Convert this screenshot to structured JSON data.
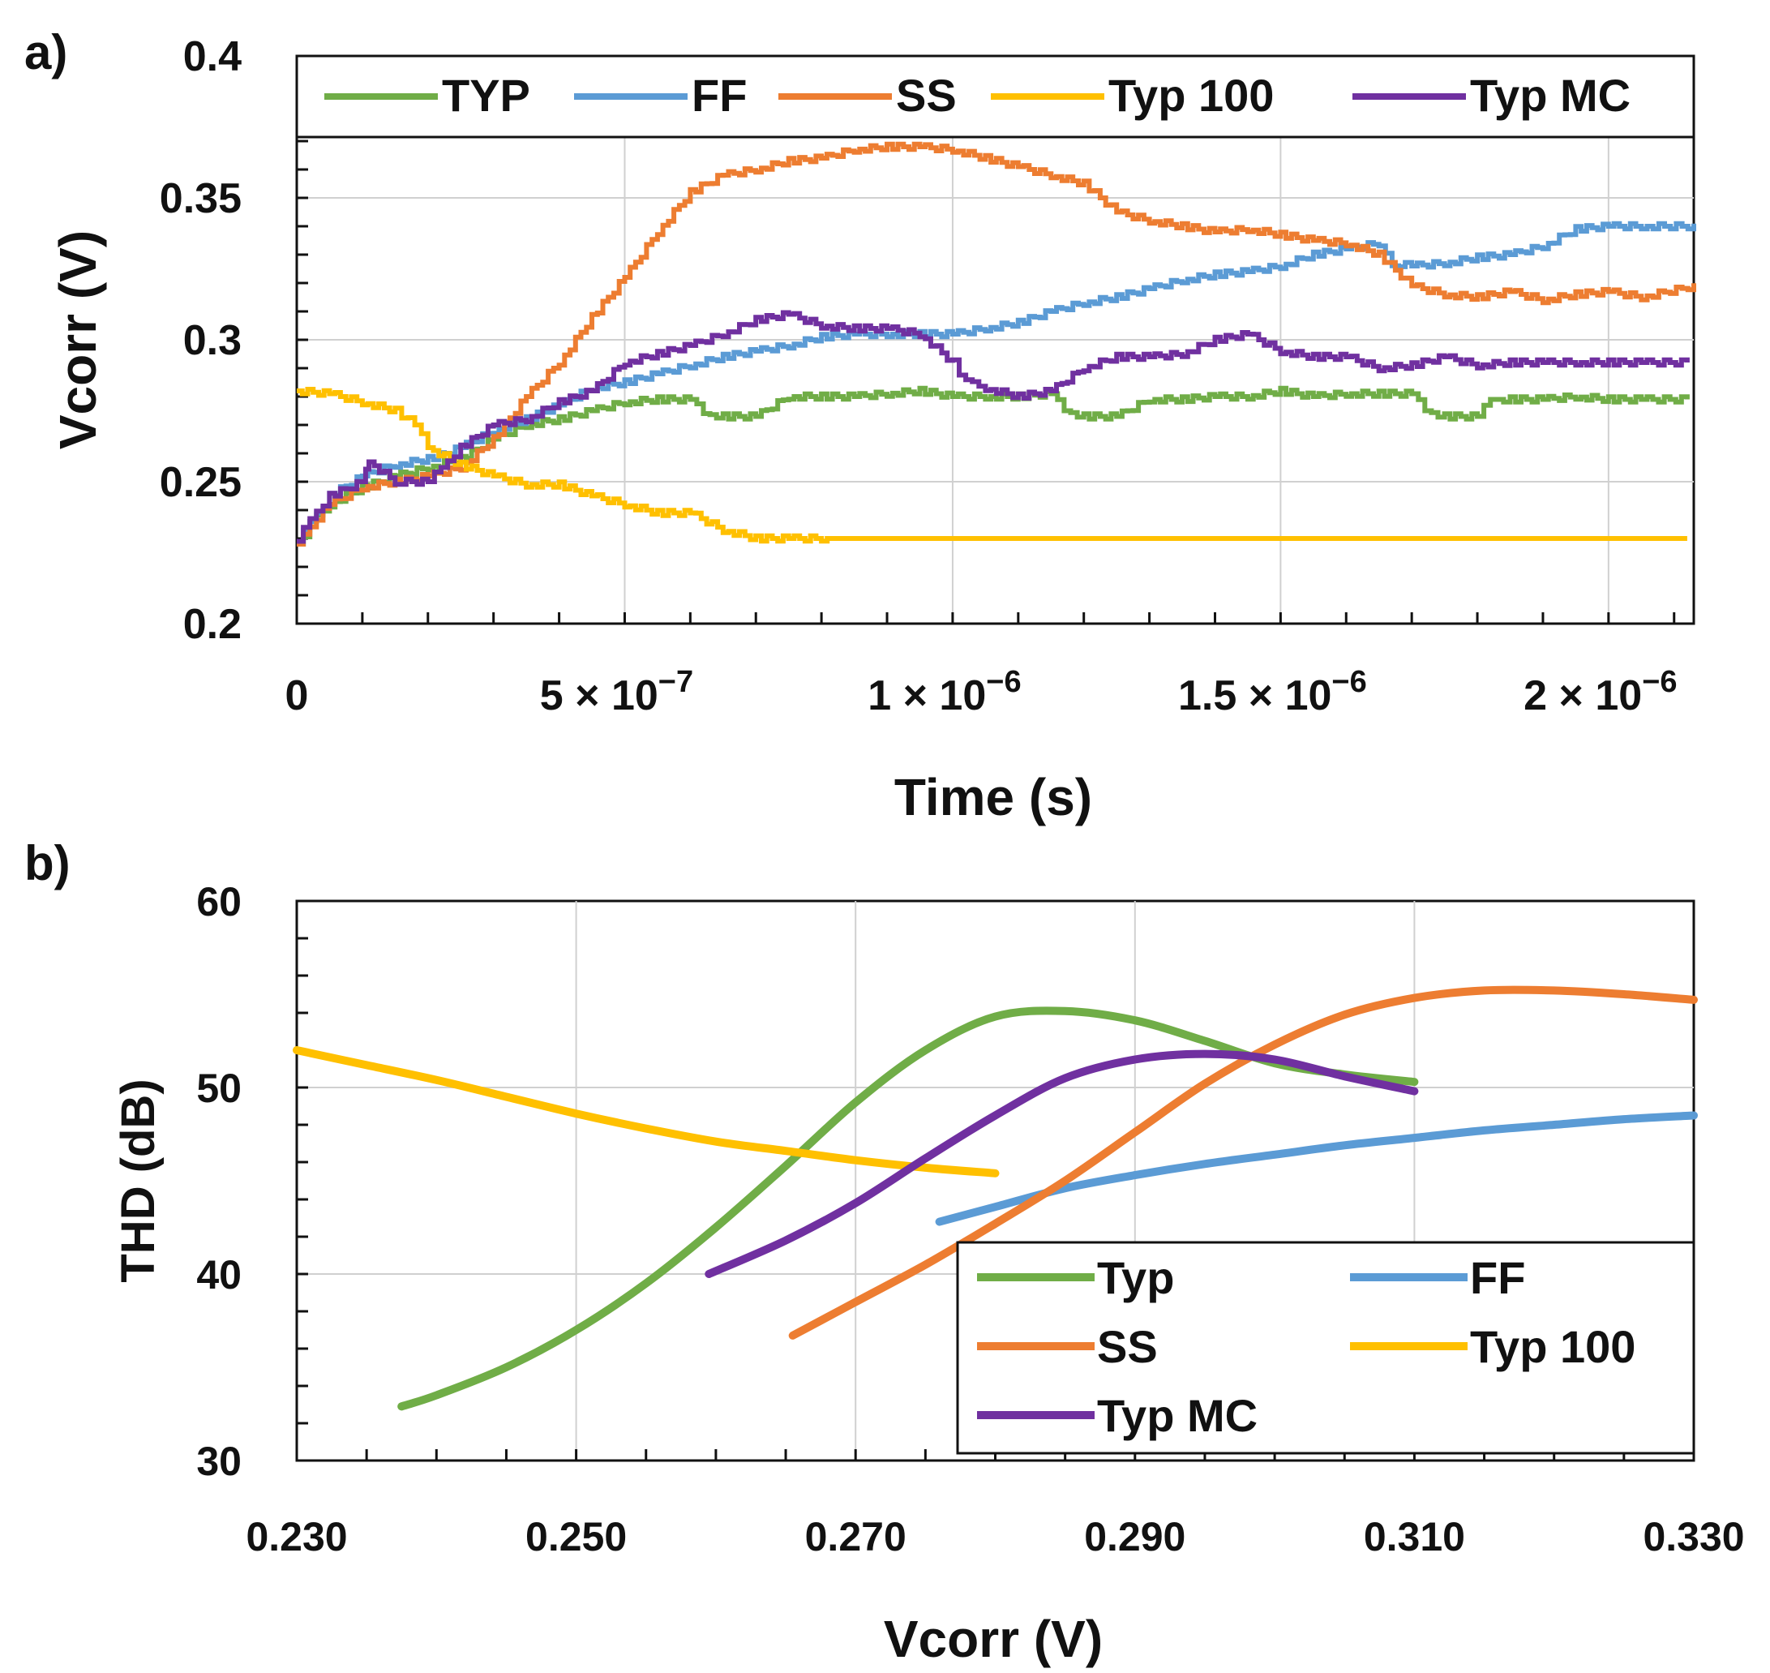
{
  "colors": {
    "typ": "#70AD47",
    "ff": "#5B9BD5",
    "ss": "#ED7D31",
    "typ100": "#FFC000",
    "typmc": "#7030A0"
  },
  "chart_data": [
    {
      "panel_label": "a)",
      "type": "line",
      "title": "",
      "xlabel": "Time (s)",
      "ylabel": "Vcorr (V)",
      "xlim": [
        0,
        2.13e-06
      ],
      "ylim": [
        0.2,
        0.4
      ],
      "grid": true,
      "legend_position": "top",
      "x_ticks": [
        {
          "value": 0,
          "mant": "0",
          "exp": ""
        },
        {
          "value": 5e-07,
          "mant": "5 × 10",
          "exp": "−7"
        },
        {
          "value": 1e-06,
          "mant": "1 × 10",
          "exp": "−6"
        },
        {
          "value": 1.5e-06,
          "mant": "1.5 × 10",
          "exp": "−6"
        },
        {
          "value": 2e-06,
          "mant": "2 × 10",
          "exp": "−6"
        }
      ],
      "y_ticks": [
        {
          "value": 0.2,
          "label": "0.2"
        },
        {
          "value": 0.25,
          "label": "0.25"
        },
        {
          "value": 0.3,
          "label": "0.3"
        },
        {
          "value": 0.35,
          "label": "0.35"
        },
        {
          "value": 0.4,
          "label": "0.4"
        }
      ],
      "series": [
        {
          "key": "typ",
          "name": "TYP",
          "color": "#70AD47",
          "x": [
            0,
            2e-08,
            5e-08,
            1e-07,
            1.5e-07,
            2e-07,
            2.5e-07,
            3e-07,
            3.5e-07,
            4e-07,
            4.5e-07,
            5e-07,
            5.5e-07,
            6e-07,
            6.2e-07,
            6.5e-07,
            7e-07,
            7.5e-07,
            8e-07,
            8.5e-07,
            9e-07,
            9.5e-07,
            1e-06,
            1.05e-06,
            1.1e-06,
            1.15e-06,
            1.17e-06,
            1.2e-06,
            1.25e-06,
            1.3e-06,
            1.35e-06,
            1.4e-06,
            1.45e-06,
            1.5e-06,
            1.55e-06,
            1.6e-06,
            1.65e-06,
            1.7e-06,
            1.72e-06,
            1.75e-06,
            1.8e-06,
            1.82e-06,
            1.85e-06,
            1.9e-06,
            1.95e-06,
            2e-06,
            2.05e-06,
            2.12e-06
          ],
          "y": [
            0.228,
            0.235,
            0.242,
            0.248,
            0.252,
            0.255,
            0.258,
            0.265,
            0.27,
            0.272,
            0.275,
            0.278,
            0.279,
            0.279,
            0.274,
            0.273,
            0.273,
            0.28,
            0.28,
            0.28,
            0.281,
            0.282,
            0.28,
            0.28,
            0.28,
            0.281,
            0.275,
            0.273,
            0.273,
            0.279,
            0.279,
            0.28,
            0.28,
            0.282,
            0.28,
            0.281,
            0.281,
            0.281,
            0.275,
            0.273,
            0.273,
            0.279,
            0.279,
            0.279,
            0.28,
            0.279,
            0.279,
            0.279
          ]
        },
        {
          "key": "ff",
          "name": "FF",
          "color": "#5B9BD5",
          "x": [
            0,
            2e-08,
            5e-08,
            1e-07,
            1.5e-07,
            2e-07,
            2.5e-07,
            3e-07,
            3.5e-07,
            4e-07,
            4.5e-07,
            5e-07,
            5.5e-07,
            6e-07,
            6.5e-07,
            7e-07,
            7.5e-07,
            8e-07,
            8.5e-07,
            9e-07,
            9.5e-07,
            1e-06,
            1.05e-06,
            1.1e-06,
            1.15e-06,
            1.2e-06,
            1.25e-06,
            1.3e-06,
            1.35e-06,
            1.4e-06,
            1.45e-06,
            1.5e-06,
            1.55e-06,
            1.6e-06,
            1.65e-06,
            1.67e-06,
            1.7e-06,
            1.75e-06,
            1.8e-06,
            1.85e-06,
            1.9e-06,
            1.95e-06,
            2e-06,
            2.05e-06,
            2.13e-06
          ],
          "y": [
            0.228,
            0.236,
            0.245,
            0.252,
            0.256,
            0.258,
            0.262,
            0.268,
            0.272,
            0.277,
            0.283,
            0.285,
            0.288,
            0.291,
            0.294,
            0.296,
            0.298,
            0.301,
            0.302,
            0.302,
            0.302,
            0.302,
            0.304,
            0.306,
            0.31,
            0.313,
            0.315,
            0.318,
            0.321,
            0.323,
            0.324,
            0.326,
            0.33,
            0.332,
            0.334,
            0.327,
            0.326,
            0.327,
            0.329,
            0.33,
            0.333,
            0.339,
            0.34,
            0.34,
            0.34
          ]
        },
        {
          "key": "ss",
          "name": "SS",
          "color": "#ED7D31",
          "x": [
            0,
            2e-08,
            5e-08,
            1e-07,
            1.5e-07,
            2e-07,
            2.5e-07,
            3e-07,
            3.5e-07,
            4e-07,
            4.5e-07,
            5e-07,
            5.5e-07,
            6e-07,
            6.5e-07,
            7e-07,
            7.5e-07,
            8e-07,
            8.5e-07,
            9e-07,
            9.5e-07,
            1e-06,
            1.05e-06,
            1.1e-06,
            1.15e-06,
            1.2e-06,
            1.25e-06,
            1.3e-06,
            1.35e-06,
            1.4e-06,
            1.45e-06,
            1.5e-06,
            1.55e-06,
            1.6e-06,
            1.65e-06,
            1.7e-06,
            1.75e-06,
            1.8e-06,
            1.85e-06,
            1.9e-06,
            1.95e-06,
            2e-06,
            2.05e-06,
            2.13e-06
          ],
          "y": [
            0.228,
            0.235,
            0.242,
            0.248,
            0.25,
            0.252,
            0.255,
            0.265,
            0.28,
            0.292,
            0.308,
            0.322,
            0.338,
            0.352,
            0.358,
            0.36,
            0.363,
            0.364,
            0.367,
            0.368,
            0.368,
            0.367,
            0.364,
            0.361,
            0.358,
            0.355,
            0.345,
            0.342,
            0.34,
            0.338,
            0.339,
            0.337,
            0.335,
            0.334,
            0.33,
            0.319,
            0.316,
            0.315,
            0.317,
            0.314,
            0.316,
            0.317,
            0.315,
            0.319
          ]
        },
        {
          "key": "typ100",
          "name": "Typ 100",
          "color": "#FFC000",
          "x": [
            0,
            5e-08,
            1e-07,
            1.5e-07,
            1.8e-07,
            2e-07,
            2.5e-07,
            3e-07,
            3.5e-07,
            4e-07,
            4.5e-07,
            5e-07,
            5.5e-07,
            6e-07,
            6.5e-07,
            7e-07,
            7.5e-07,
            8e-07,
            1e-06,
            1.5e-06,
            2e-06,
            2.12e-06
          ],
          "y": [
            0.282,
            0.281,
            0.278,
            0.275,
            0.27,
            0.262,
            0.256,
            0.252,
            0.249,
            0.249,
            0.245,
            0.242,
            0.239,
            0.239,
            0.233,
            0.23,
            0.23,
            0.23,
            0.23,
            0.23,
            0.23,
            0.23
          ]
        },
        {
          "key": "typmc",
          "name": "Typ MC",
          "color": "#7030A0",
          "x": [
            0,
            2e-08,
            5e-08,
            1e-07,
            1.1e-07,
            1.5e-07,
            2e-07,
            2.2e-07,
            2.5e-07,
            3e-07,
            3.5e-07,
            4e-07,
            4.5e-07,
            5e-07,
            5.5e-07,
            6e-07,
            6.5e-07,
            7e-07,
            7.5e-07,
            8e-07,
            8.5e-07,
            9e-07,
            9.5e-07,
            1e-06,
            1.02e-06,
            1.05e-06,
            1.1e-06,
            1.15e-06,
            1.2e-06,
            1.25e-06,
            1.3e-06,
            1.35e-06,
            1.4e-06,
            1.45e-06,
            1.5e-06,
            1.55e-06,
            1.6e-06,
            1.65e-06,
            1.7e-06,
            1.75e-06,
            1.8e-06,
            1.85e-06,
            1.9e-06,
            1.95e-06,
            2e-06,
            2.05e-06,
            2.12e-06
          ],
          "y": [
            0.229,
            0.237,
            0.245,
            0.25,
            0.257,
            0.25,
            0.25,
            0.255,
            0.262,
            0.27,
            0.272,
            0.278,
            0.282,
            0.292,
            0.295,
            0.298,
            0.302,
            0.307,
            0.309,
            0.305,
            0.304,
            0.304,
            0.302,
            0.292,
            0.285,
            0.283,
            0.28,
            0.282,
            0.29,
            0.294,
            0.294,
            0.295,
            0.3,
            0.302,
            0.296,
            0.294,
            0.294,
            0.29,
            0.291,
            0.294,
            0.291,
            0.292,
            0.292,
            0.292,
            0.292,
            0.292,
            0.292
          ]
        }
      ]
    },
    {
      "panel_label": "b)",
      "type": "line",
      "title": "",
      "xlabel": "Vcorr (V)",
      "ylabel": "THD (dB)",
      "xlim": [
        0.23,
        0.33
      ],
      "ylim": [
        30,
        60
      ],
      "grid": true,
      "legend_position": "bottom-right",
      "x_ticks": [
        {
          "value": 0.23,
          "label": "0.230"
        },
        {
          "value": 0.25,
          "label": "0.250"
        },
        {
          "value": 0.27,
          "label": "0.270"
        },
        {
          "value": 0.29,
          "label": "0.290"
        },
        {
          "value": 0.31,
          "label": "0.310"
        },
        {
          "value": 0.33,
          "label": "0.330"
        }
      ],
      "y_ticks": [
        {
          "value": 30,
          "label": "30"
        },
        {
          "value": 40,
          "label": "40"
        },
        {
          "value": 50,
          "label": "50"
        },
        {
          "value": 60,
          "label": "60"
        }
      ],
      "series": [
        {
          "key": "typ",
          "name": "Typ",
          "color": "#70AD47",
          "x": [
            0.2375,
            0.24,
            0.245,
            0.25,
            0.255,
            0.26,
            0.265,
            0.27,
            0.275,
            0.28,
            0.285,
            0.29,
            0.295,
            0.3,
            0.305,
            0.31
          ],
          "y": [
            32.9,
            33.5,
            35.0,
            37.0,
            39.5,
            42.5,
            45.8,
            49.2,
            52.0,
            53.8,
            54.1,
            53.6,
            52.5,
            51.3,
            50.7,
            50.3
          ]
        },
        {
          "key": "ff",
          "name": "FF",
          "color": "#5B9BD5",
          "x": [
            0.276,
            0.28,
            0.285,
            0.29,
            0.295,
            0.3,
            0.305,
            0.31,
            0.315,
            0.32,
            0.325,
            0.33
          ],
          "y": [
            42.8,
            43.6,
            44.6,
            45.3,
            45.9,
            46.4,
            46.9,
            47.3,
            47.7,
            48.0,
            48.3,
            48.5
          ]
        },
        {
          "key": "ss",
          "name": "SS",
          "color": "#ED7D31",
          "x": [
            0.2655,
            0.27,
            0.275,
            0.28,
            0.285,
            0.29,
            0.295,
            0.3,
            0.305,
            0.31,
            0.315,
            0.32,
            0.325,
            0.33
          ],
          "y": [
            36.7,
            38.5,
            40.5,
            42.7,
            45.0,
            47.6,
            50.2,
            52.3,
            53.9,
            54.8,
            55.2,
            55.2,
            55.0,
            54.7
          ]
        },
        {
          "key": "typ100",
          "name": "Typ 100",
          "color": "#FFC000",
          "x": [
            0.23,
            0.235,
            0.24,
            0.245,
            0.25,
            0.255,
            0.26,
            0.265,
            0.27,
            0.275,
            0.28
          ],
          "y": [
            52.0,
            51.2,
            50.4,
            49.5,
            48.6,
            47.8,
            47.1,
            46.6,
            46.1,
            45.7,
            45.4
          ]
        },
        {
          "key": "typmc",
          "name": "Typ MC",
          "color": "#7030A0",
          "x": [
            0.2595,
            0.265,
            0.27,
            0.275,
            0.28,
            0.285,
            0.29,
            0.295,
            0.3,
            0.305,
            0.31
          ],
          "y": [
            40.0,
            41.8,
            43.8,
            46.2,
            48.5,
            50.5,
            51.5,
            51.8,
            51.5,
            50.6,
            49.8
          ]
        }
      ],
      "legend_entries": [
        {
          "key": "typ",
          "name": "Typ"
        },
        {
          "key": "ff",
          "name": "FF"
        },
        {
          "key": "ss",
          "name": "SS"
        },
        {
          "key": "typ100",
          "name": "Typ 100"
        },
        {
          "key": "typmc",
          "name": "Typ MC"
        }
      ]
    }
  ]
}
